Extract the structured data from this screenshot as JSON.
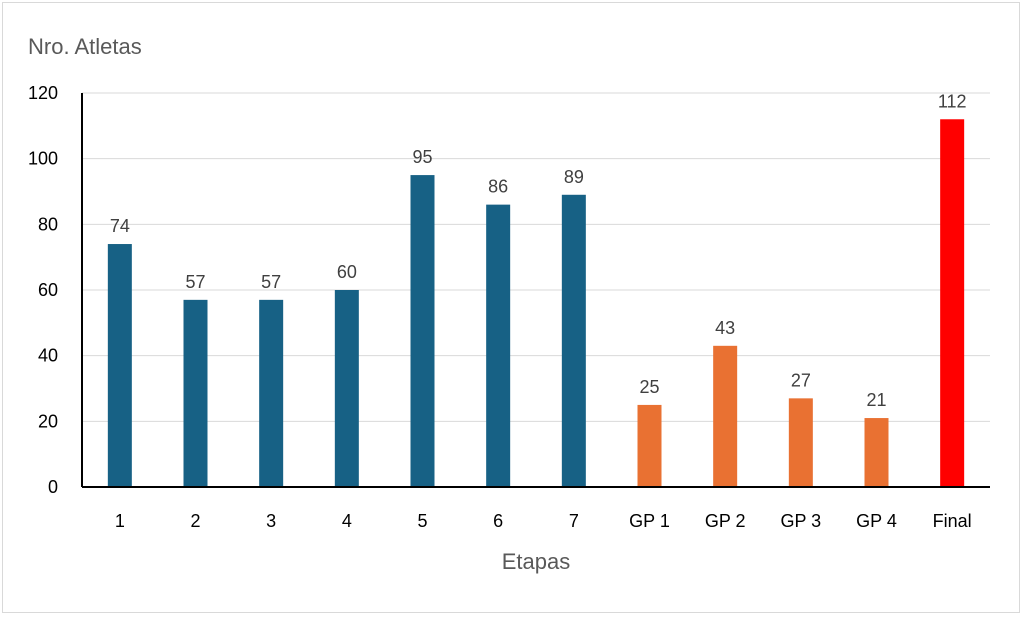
{
  "chart_data": {
    "type": "bar",
    "title": "",
    "xlabel": "Etapas",
    "ylabel": "Nro. Atletas",
    "ylim": [
      0,
      120
    ],
    "yticks": [
      0,
      20,
      40,
      60,
      80,
      100,
      120
    ],
    "grid": true,
    "legend": "none",
    "categories": [
      "1",
      "2",
      "3",
      "4",
      "5",
      "6",
      "7",
      "GP 1",
      "GP 2",
      "GP 3",
      "GP 4",
      "Final"
    ],
    "values": [
      74,
      57,
      57,
      60,
      95,
      86,
      89,
      25,
      43,
      27,
      21,
      112
    ],
    "bar_colors": [
      "#176185",
      "#176185",
      "#176185",
      "#176185",
      "#176185",
      "#176185",
      "#176185",
      "#E97132",
      "#E97132",
      "#E97132",
      "#E97132",
      "#FF0000"
    ],
    "data_labels": true
  }
}
